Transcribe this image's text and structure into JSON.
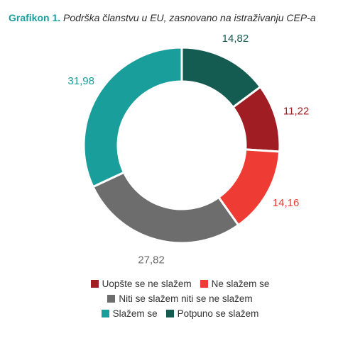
{
  "title": {
    "lead": "Grafikon 1.",
    "rest": "Podrška članstvu u EU, zasnovano na istraživanju CEP-a"
  },
  "chart_data": {
    "type": "pie",
    "donut": true,
    "categories": [
      "Potpuno se slažem",
      "Uopšte se ne slažem",
      "Ne slažem se",
      "Niti se slažem niti se ne slažem",
      "Slažem se"
    ],
    "values": [
      14.82,
      11.22,
      14.16,
      27.82,
      31.98
    ],
    "labels": [
      "14,82",
      "11,22",
      "14,16",
      "27,82",
      "31,98"
    ],
    "colors": [
      "#145c52",
      "#a01d24",
      "#ee3b33",
      "#6d6d6d",
      "#1a9e9b"
    ],
    "legend_rows": [
      [
        1,
        2
      ],
      [
        3
      ],
      [
        4,
        0
      ]
    ],
    "legend_position": "bottom"
  }
}
